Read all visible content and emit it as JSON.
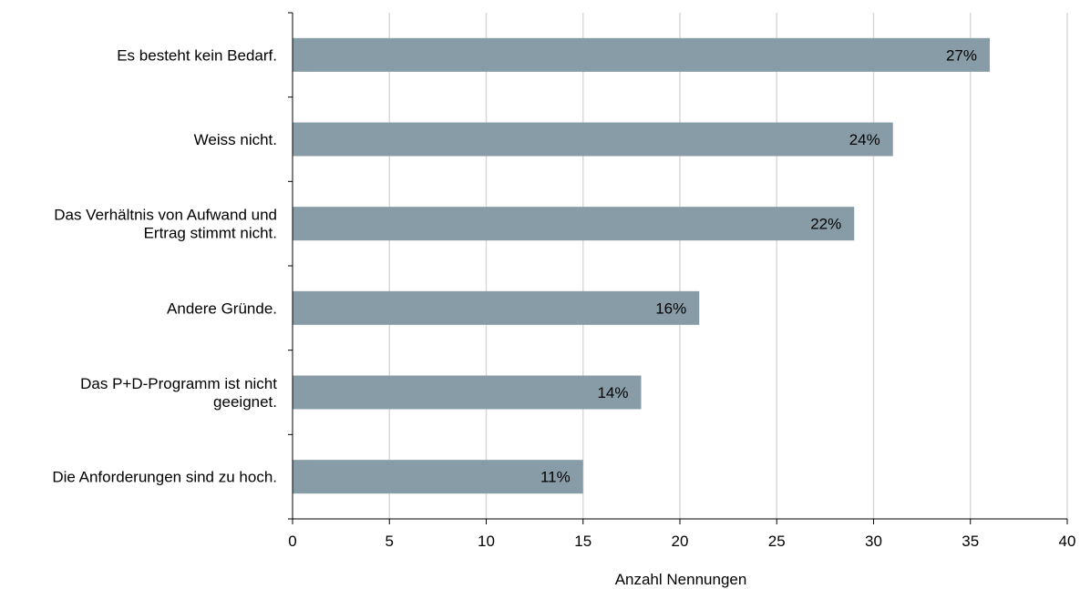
{
  "chart_data": {
    "type": "bar",
    "orientation": "horizontal",
    "categories": [
      "Es besteht kein Bedarf.",
      "Weiss nicht.",
      "Das Verhältnis von Aufwand und Ertrag stimmt nicht.",
      "Andere Gründe.",
      "Das P+D-Programm ist nicht geeignet.",
      "Die Anforderungen sind zu hoch."
    ],
    "category_lines": [
      [
        "Es besteht kein Bedarf."
      ],
      [
        "Weiss nicht."
      ],
      [
        "Das Verhältnis von Aufwand und",
        "Ertrag stimmt nicht."
      ],
      [
        "Andere Gründe."
      ],
      [
        "Das P+D-Programm ist nicht",
        "geeignet."
      ],
      [
        "Die Anforderungen sind zu hoch."
      ]
    ],
    "values": [
      36,
      31,
      29,
      21,
      18,
      15
    ],
    "data_labels": [
      "27%",
      "24%",
      "22%",
      "16%",
      "14%",
      "11%"
    ],
    "xlabel": "Anzahl Nennungen",
    "ylabel": "",
    "title": "",
    "xlim": [
      0,
      40
    ],
    "xticks": [
      0,
      5,
      10,
      15,
      20,
      25,
      30,
      35,
      40
    ],
    "grid": "vertical",
    "bar_color": "#889ca7",
    "grid_color": "#d9d9d9"
  }
}
